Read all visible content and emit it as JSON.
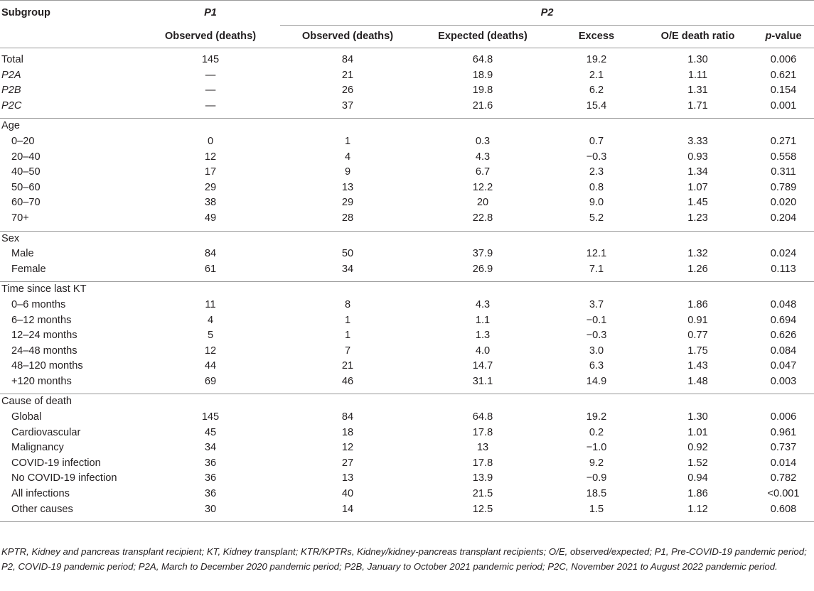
{
  "header": {
    "subgroup": "Subgroup",
    "p1": "P1",
    "p2": "P2",
    "p1_obs": "Observed (deaths)",
    "p2_obs": "Observed (deaths)",
    "p2_exp": "Expected (deaths)",
    "p2_excess": "Excess",
    "p2_ratio": "O/E death ratio",
    "p2_pval_italic": "p",
    "p2_pval_rest": "-value"
  },
  "rows": {
    "total": [
      "Total",
      "145",
      "84",
      "64.8",
      "19.2",
      "1.30",
      "0.006"
    ],
    "p2a": [
      "P2A",
      "—",
      "21",
      "18.9",
      "2.1",
      "1.11",
      "0.621"
    ],
    "p2b": [
      "P2B",
      "—",
      "26",
      "19.8",
      "6.2",
      "1.31",
      "0.154"
    ],
    "p2c": [
      "P2C",
      "—",
      "37",
      "21.6",
      "15.4",
      "1.71",
      "0.001"
    ],
    "age_title": "Age",
    "age": [
      [
        "0–20",
        "0",
        "1",
        "0.3",
        "0.7",
        "3.33",
        "0.271"
      ],
      [
        "20–40",
        "12",
        "4",
        "4.3",
        "−0.3",
        "0.93",
        "0.558"
      ],
      [
        "40–50",
        "17",
        "9",
        "6.7",
        "2.3",
        "1.34",
        "0.311"
      ],
      [
        "50–60",
        "29",
        "13",
        "12.2",
        "0.8",
        "1.07",
        "0.789"
      ],
      [
        "60–70",
        "38",
        "29",
        "20",
        "9.0",
        "1.45",
        "0.020"
      ],
      [
        "70+",
        "49",
        "28",
        "22.8",
        "5.2",
        "1.23",
        "0.204"
      ]
    ],
    "sex_title": "Sex",
    "sex": [
      [
        "Male",
        "84",
        "50",
        "37.9",
        "12.1",
        "1.32",
        "0.024"
      ],
      [
        "Female",
        "61",
        "34",
        "26.9",
        "7.1",
        "1.26",
        "0.113"
      ]
    ],
    "time_title": "Time since last KT",
    "time": [
      [
        "0–6 months",
        "11",
        "8",
        "4.3",
        "3.7",
        "1.86",
        "0.048"
      ],
      [
        "6–12 months",
        "4",
        "1",
        "1.1",
        "−0.1",
        "0.91",
        "0.694"
      ],
      [
        "12–24 months",
        "5",
        "1",
        "1.3",
        "−0.3",
        "0.77",
        "0.626"
      ],
      [
        "24–48 months",
        "12",
        "7",
        "4.0",
        "3.0",
        "1.75",
        "0.084"
      ],
      [
        "48–120 months",
        "44",
        "21",
        "14.7",
        "6.3",
        "1.43",
        "0.047"
      ],
      [
        "+120 months",
        "69",
        "46",
        "31.1",
        "14.9",
        "1.48",
        "0.003"
      ]
    ],
    "cause_title": "Cause of death",
    "cause": [
      [
        "Global",
        "145",
        "84",
        "64.8",
        "19.2",
        "1.30",
        "0.006"
      ],
      [
        "Cardiovascular",
        "45",
        "18",
        "17.8",
        "0.2",
        "1.01",
        "0.961"
      ],
      [
        "Malignancy",
        "34",
        "12",
        "13",
        "−1.0",
        "0.92",
        "0.737"
      ],
      [
        "COVID-19 infection",
        "36",
        "27",
        "17.8",
        "9.2",
        "1.52",
        "0.014"
      ],
      [
        "No COVID-19 infection",
        "36",
        "13",
        "13.9",
        "−0.9",
        "0.94",
        "0.782"
      ],
      [
        "All infections",
        "36",
        "40",
        "21.5",
        "18.5",
        "1.86",
        "<0.001"
      ],
      [
        "Other causes",
        "30",
        "14",
        "12.5",
        "1.5",
        "1.12",
        "0.608"
      ]
    ]
  },
  "footnote": "KPTR, Kidney and pancreas transplant recipient; KT, Kidney transplant; KTR/KPTRs, Kidney/kidney-pancreas transplant recipients; O/E, observed/expected; P1, Pre-COVID-19 pandemic period; P2, COVID-19 pandemic period; P2A, March to December 2020 pandemic period; P2B, January to October 2021 pandemic period; P2C, November 2021 to August 2022 pandemic period."
}
